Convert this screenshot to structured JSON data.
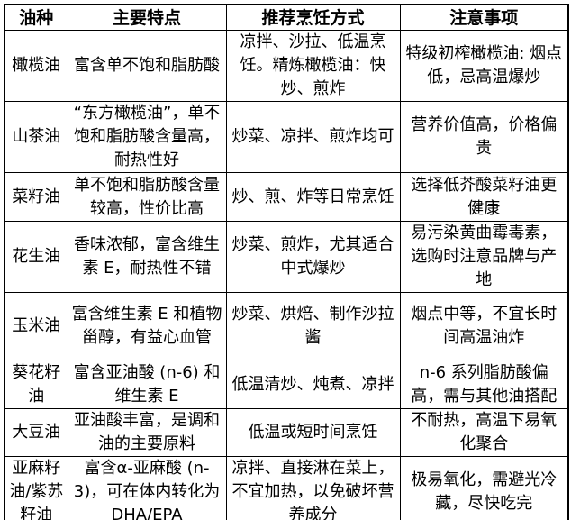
{
  "colors": {
    "border": "#000000",
    "text": "#000000",
    "background": "#ffffff"
  },
  "table": {
    "headers": [
      "油种",
      "主要特点",
      "推荐烹饪方式",
      "注意事项"
    ],
    "rows": [
      {
        "oil": "橄榄油",
        "features": "富含单不饱和脂肪酸",
        "cooking": "凉拌、沙拉、低温烹饪。精炼橄榄油：快炒、煎炸",
        "notes": "特级初榨橄榄油: 烟点低，忌高温爆炒"
      },
      {
        "oil": "山茶油",
        "features": "“东方橄榄油”，单不饱和脂肪酸含量高，耐热性好",
        "cooking": "炒菜、凉拌、煎炸均可",
        "notes": "营养价值高，价格偏贵"
      },
      {
        "oil": "菜籽油",
        "features": "单不饱和脂肪酸含量较高，性价比高",
        "cooking": "炒、煎、炸等日常烹饪",
        "notes": "选择低芥酸菜籽油更健康"
      },
      {
        "oil": "花生油",
        "features": "香味浓郁，富含维生素 E，耐热性不错",
        "cooking": "炒菜、煎炸，尤其适合中式爆炒",
        "notes": "易污染黄曲霉毒素，选购时注意品牌与产地"
      },
      {
        "oil": "玉米油",
        "features": "富含维生素 E 和植物甾醇，有益心血管",
        "cooking": "炒菜、烘焙、制作沙拉酱",
        "notes": "烟点中等，不宜长时间高温油炸"
      },
      {
        "oil": "葵花籽油",
        "features": "富含亚油酸 (n-6) 和维生素 E",
        "cooking": "低温清炒、炖煮、凉拌",
        "notes": "n-6 系列脂肪酸偏高，需与其他油搭配"
      },
      {
        "oil": "大豆油",
        "features": "亚油酸丰富，是调和油的主要原料",
        "cooking": "低温或短时间烹饪",
        "notes": "不耐热，高温下易氧化聚合"
      },
      {
        "oil": "亚麻籽油/紫苏籽油",
        "features": "富含α-亚麻酸 (n-3)，可在体内转化为 DHA/EPA",
        "cooking": "凉拌、直接淋在菜上，不宜加热，以免破坏营养成分",
        "notes": "极易氧化，需避光冷藏，尽快吃完"
      }
    ]
  }
}
